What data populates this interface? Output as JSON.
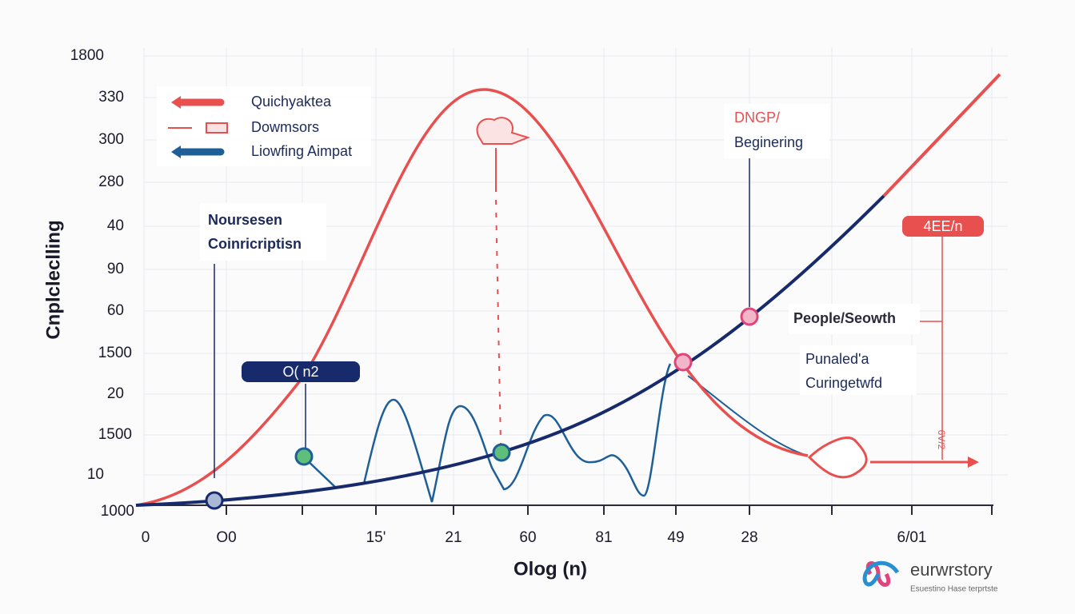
{
  "axes": {
    "y_title": "Cnplcleclling",
    "x_title": "Olog (n)",
    "y_labels": [
      "1800",
      "330",
      "300",
      "280",
      "40",
      "90",
      "60",
      "1500",
      "20",
      "1500",
      "10",
      "1000"
    ],
    "x_labels": [
      "0",
      "O0",
      "15'",
      "21",
      "60",
      "81",
      "49",
      "28",
      "6/01"
    ]
  },
  "legend": [
    "Quichyaktea",
    "Dowmsors",
    "Liowfing Aimpat"
  ],
  "annotations": {
    "left_box": [
      "Noursesen",
      "Coinricriptisn"
    ],
    "pill": "O( n2",
    "top_right": [
      "DNGP/",
      "Beginering"
    ],
    "badge": "4EE/n",
    "mid_right": "People/Seowth",
    "lower_right": [
      "Punaled'a",
      "Curingetwfd"
    ],
    "vertical_note": "6V/2"
  },
  "logo": {
    "name": "eurwrstory",
    "tagline": "Esuestino Hase terprtste"
  }
}
